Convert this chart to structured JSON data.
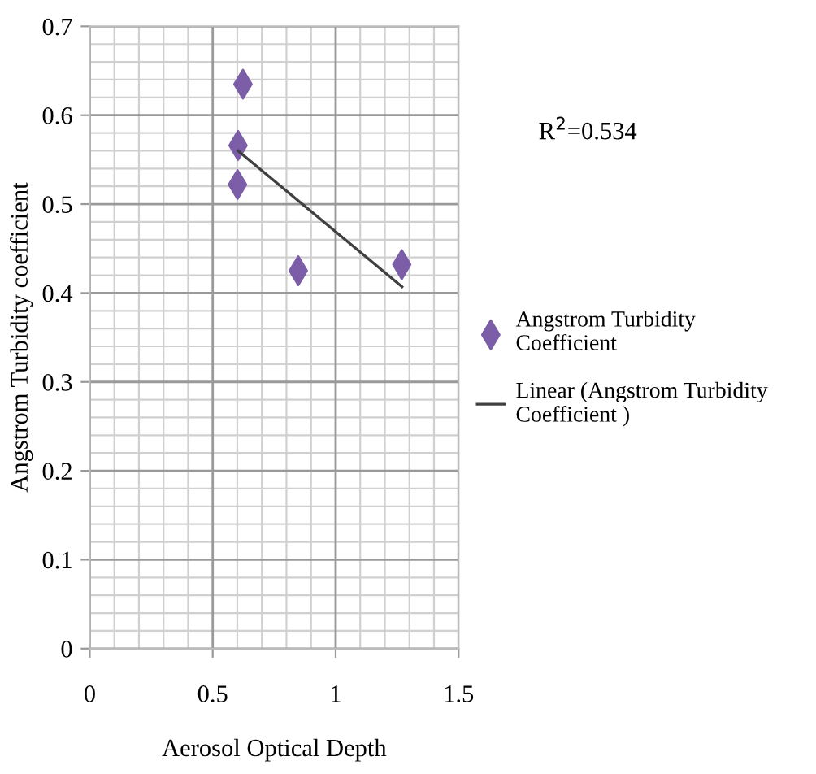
{
  "chart_data": {
    "type": "scatter",
    "xlabel": "Aerosol Optical Depth",
    "ylabel": "Angstrom Turbidity coefficient",
    "xlim": [
      0,
      1.5
    ],
    "ylim": [
      0,
      0.7
    ],
    "xticks": [
      0,
      0.5,
      1,
      1.5
    ],
    "yticks": [
      0,
      0.1,
      0.2,
      0.3,
      0.4,
      0.5,
      0.6,
      0.7
    ],
    "grid": true,
    "legend": "right",
    "marker": "diamond",
    "series": [
      {
        "name": "Angstrom Turbidity\nCoefficient",
        "color": "#7b5ea7",
        "x": [
          0.623,
          0.603,
          0.601,
          0.848,
          1.269
        ],
        "values": [
          0.635,
          0.566,
          0.522,
          0.425,
          0.432
        ]
      },
      {
        "name": "Linear (Angstrom Turbidity\nCoefficient )",
        "type": "line",
        "color": "#404040",
        "marker": "none",
        "x": [
          0.603,
          1.27
        ],
        "values": [
          0.56,
          0.407
        ]
      }
    ],
    "annotations": [
      "R$^{2}$=0.534"
    ]
  }
}
